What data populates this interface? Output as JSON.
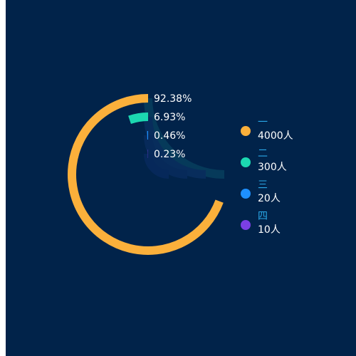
{
  "chart_data": {
    "type": "radial-bar",
    "title": "",
    "background_color": "#01234a",
    "track_colors": [
      "#063a5a",
      "#082d5c",
      "#072a5a",
      "#06285a"
    ],
    "series": [
      {
        "name": "一",
        "value": 4000,
        "value_label": "4000人",
        "percent_label": "92.38%",
        "color": "#fbb03b"
      },
      {
        "name": "二",
        "value": 300,
        "value_label": "300人",
        "percent_label": "6.93%",
        "color": "#1cd8b1"
      },
      {
        "name": "三",
        "value": 20,
        "value_label": "20人",
        "percent_label": "0.46%",
        "color": "#1e90ff"
      },
      {
        "name": "四",
        "value": 10,
        "value_label": "10人",
        "percent_label": "0.23%",
        "color": "#7b3fe4"
      }
    ],
    "legend_position": "right",
    "legend_name_color": "#2aa8e8",
    "label_color": "#ffffff"
  }
}
